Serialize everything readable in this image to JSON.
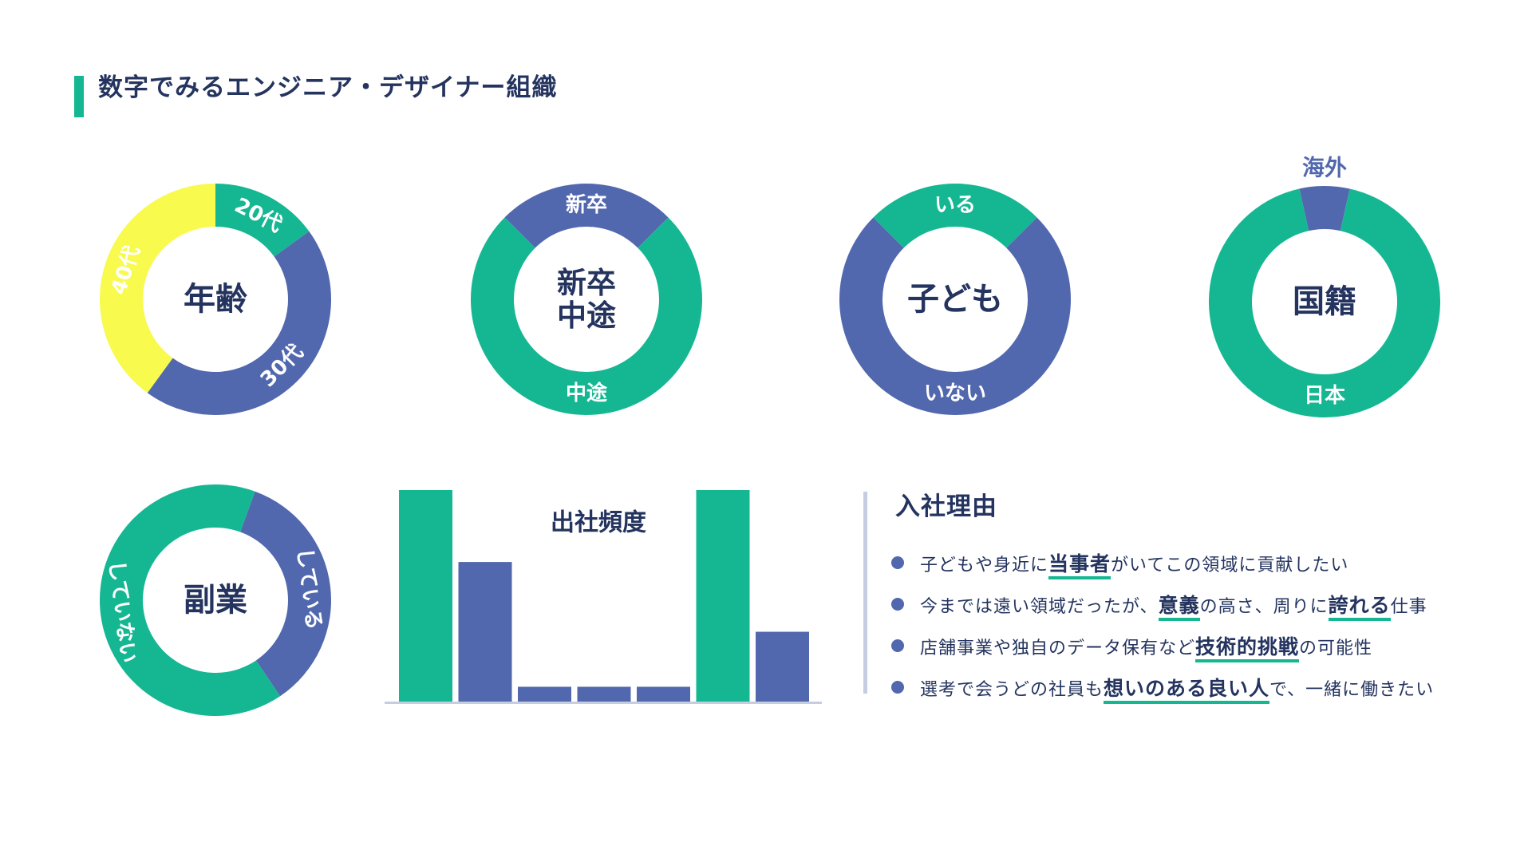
{
  "page": {
    "title": "数字でみるエンジニア・デザイナー組織"
  },
  "colors": {
    "green": "#15b792",
    "blue": "#5268ae",
    "yellow": "#f8fa4e",
    "navy": "#24345f",
    "axis": "#c6cde0"
  },
  "chart_data": [
    {
      "type": "pie",
      "title": "年齢",
      "series": [
        {
          "label": "20代",
          "value": 15,
          "color": "#15b792"
        },
        {
          "label": "30代",
          "value": 45,
          "color": "#5268ae"
        },
        {
          "label": "40代",
          "value": 40,
          "color": "#f8fa4e"
        }
      ]
    },
    {
      "type": "pie",
      "title_lines": [
        "新卒",
        "中途"
      ],
      "series": [
        {
          "label": "新卒",
          "value": 25,
          "color": "#5268ae"
        },
        {
          "label": "中途",
          "value": 75,
          "color": "#15b792"
        }
      ]
    },
    {
      "type": "pie",
      "title": "子ども",
      "series": [
        {
          "label": "いる",
          "value": 25,
          "color": "#15b792"
        },
        {
          "label": "いない",
          "value": 75,
          "color": "#5268ae"
        }
      ]
    },
    {
      "type": "pie",
      "title": "国籍",
      "series": [
        {
          "label": "海外",
          "value": 7,
          "color": "#5268ae"
        },
        {
          "label": "日本",
          "value": 93,
          "color": "#15b792"
        }
      ]
    },
    {
      "type": "pie",
      "title": "副業",
      "series": [
        {
          "label": "している",
          "value": 35,
          "color": "#5268ae"
        },
        {
          "label": "していない",
          "value": 65,
          "color": "#15b792"
        }
      ]
    },
    {
      "type": "bar",
      "title": "出社頻度",
      "values": [
        100,
        66,
        7,
        7,
        7,
        100,
        33
      ],
      "colors": [
        "#15b792",
        "#5268ae",
        "#5268ae",
        "#5268ae",
        "#5268ae",
        "#15b792",
        "#5268ae"
      ],
      "ylim": [
        0,
        100
      ]
    }
  ],
  "reasons": {
    "title": "入社理由",
    "items": [
      {
        "before": "子どもや身近に",
        "highlight": "当事者",
        "after": "がいてこの領域に貢献したい"
      },
      {
        "before": "今までは遠い領域だったが、",
        "highlight": "意義",
        "middle": "の高さ、周りに",
        "highlight2": "誇れる",
        "after": "仕事"
      },
      {
        "before": "店舗事業や独自のデータ保有など",
        "highlight": "技術的挑戦",
        "after": "の可能性"
      },
      {
        "before": "選考で会うどの社員も",
        "highlight": "想いのある良い人",
        "after": "で、一緒に働きたい"
      }
    ]
  }
}
